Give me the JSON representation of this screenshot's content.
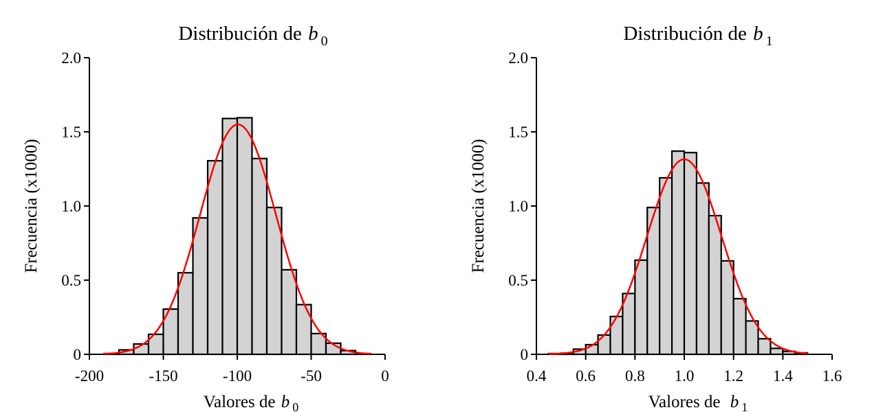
{
  "chart_data": [
    {
      "type": "bar",
      "title": "Distribución de ",
      "title_symbol": "b",
      "title_subscript": "0",
      "xlabel": "Valores de ",
      "xlabel_symbol": "b",
      "xlabel_subscript": "0",
      "ylabel": "Frecuencia (x1000)",
      "xlim": [
        -200,
        0
      ],
      "ylim": [
        0,
        2.0
      ],
      "x_ticks": [
        -200,
        -150,
        -100,
        -50,
        0
      ],
      "x_tick_labels": [
        "-200",
        "-150",
        "-100",
        "-50",
        "0"
      ],
      "y_ticks": [
        0,
        0.5,
        1.0,
        1.5,
        2.0
      ],
      "y_tick_labels": [
        "0",
        "0.5",
        "1.0",
        "1.5",
        "2.0"
      ],
      "bin_width": 10,
      "bins": [
        {
          "x0": -190,
          "x1": -180,
          "count": 0.005
        },
        {
          "x0": -180,
          "x1": -170,
          "count": 0.03
        },
        {
          "x0": -170,
          "x1": -160,
          "count": 0.07
        },
        {
          "x0": -160,
          "x1": -150,
          "count": 0.135
        },
        {
          "x0": -150,
          "x1": -140,
          "count": 0.305
        },
        {
          "x0": -140,
          "x1": -130,
          "count": 0.55
        },
        {
          "x0": -130,
          "x1": -120,
          "count": 0.92
        },
        {
          "x0": -120,
          "x1": -110,
          "count": 1.305
        },
        {
          "x0": -110,
          "x1": -100,
          "count": 1.59
        },
        {
          "x0": -100,
          "x1": -90,
          "count": 1.595
        },
        {
          "x0": -90,
          "x1": -80,
          "count": 1.32
        },
        {
          "x0": -80,
          "x1": -70,
          "count": 0.99
        },
        {
          "x0": -70,
          "x1": -60,
          "count": 0.57
        },
        {
          "x0": -60,
          "x1": -50,
          "count": 0.335
        },
        {
          "x0": -50,
          "x1": -40,
          "count": 0.14
        },
        {
          "x0": -40,
          "x1": -30,
          "count": 0.075
        },
        {
          "x0": -30,
          "x1": -20,
          "count": 0.025
        },
        {
          "x0": -20,
          "x1": -10,
          "count": 0.005
        }
      ],
      "density_curve": {
        "mean": -99.5,
        "sd": 25.7,
        "peak": 1.55,
        "x_range": [
          -190,
          -10
        ],
        "color": "#ff0000"
      },
      "bar_color": "#d3d3d3",
      "edge_color": "#000000"
    },
    {
      "type": "bar",
      "title": "Distribución de ",
      "title_symbol": "b",
      "title_subscript": "1",
      "xlabel": "Valores de ",
      "xlabel_symbol": "b",
      "xlabel_subscript": "1",
      "ylabel": "Frecuencia (x1000)",
      "xlim": [
        0.4,
        1.6
      ],
      "ylim": [
        0,
        2.0
      ],
      "x_ticks": [
        0.4,
        0.6,
        0.8,
        1.0,
        1.2,
        1.4,
        1.6
      ],
      "x_tick_labels": [
        "0.4",
        "0.6",
        "0.8",
        "1.0",
        "1.2",
        "1.4",
        "1.6"
      ],
      "y_ticks": [
        0,
        0.5,
        1.0,
        1.5,
        2.0
      ],
      "y_tick_labels": [
        "0",
        "0.5",
        "1.0",
        "1.5",
        "2.0"
      ],
      "bin_width": 0.05,
      "bins": [
        {
          "x0": 0.45,
          "x1": 0.5,
          "count": 0.005
        },
        {
          "x0": 0.5,
          "x1": 0.55,
          "count": 0.008
        },
        {
          "x0": 0.55,
          "x1": 0.6,
          "count": 0.035
        },
        {
          "x0": 0.6,
          "x1": 0.65,
          "count": 0.065
        },
        {
          "x0": 0.65,
          "x1": 0.7,
          "count": 0.13
        },
        {
          "x0": 0.7,
          "x1": 0.75,
          "count": 0.255
        },
        {
          "x0": 0.75,
          "x1": 0.8,
          "count": 0.41
        },
        {
          "x0": 0.8,
          "x1": 0.85,
          "count": 0.635
        },
        {
          "x0": 0.85,
          "x1": 0.9,
          "count": 0.99
        },
        {
          "x0": 0.9,
          "x1": 0.95,
          "count": 1.19
        },
        {
          "x0": 0.95,
          "x1": 1.0,
          "count": 1.37
        },
        {
          "x0": 1.0,
          "x1": 1.05,
          "count": 1.36
        },
        {
          "x0": 1.05,
          "x1": 1.1,
          "count": 1.155
        },
        {
          "x0": 1.1,
          "x1": 1.15,
          "count": 0.935
        },
        {
          "x0": 1.15,
          "x1": 1.2,
          "count": 0.63
        },
        {
          "x0": 1.2,
          "x1": 1.25,
          "count": 0.375
        },
        {
          "x0": 1.25,
          "x1": 1.3,
          "count": 0.225
        },
        {
          "x0": 1.3,
          "x1": 1.35,
          "count": 0.105
        },
        {
          "x0": 1.35,
          "x1": 1.4,
          "count": 0.04
        },
        {
          "x0": 1.4,
          "x1": 1.45,
          "count": 0.02
        },
        {
          "x0": 1.45,
          "x1": 1.5,
          "count": 0.01
        }
      ],
      "density_curve": {
        "mean": 1.0,
        "sd": 0.151,
        "peak": 1.315,
        "x_range": [
          0.45,
          1.5
        ],
        "color": "#ff0000"
      },
      "bar_color": "#d3d3d3",
      "edge_color": "#000000"
    }
  ]
}
